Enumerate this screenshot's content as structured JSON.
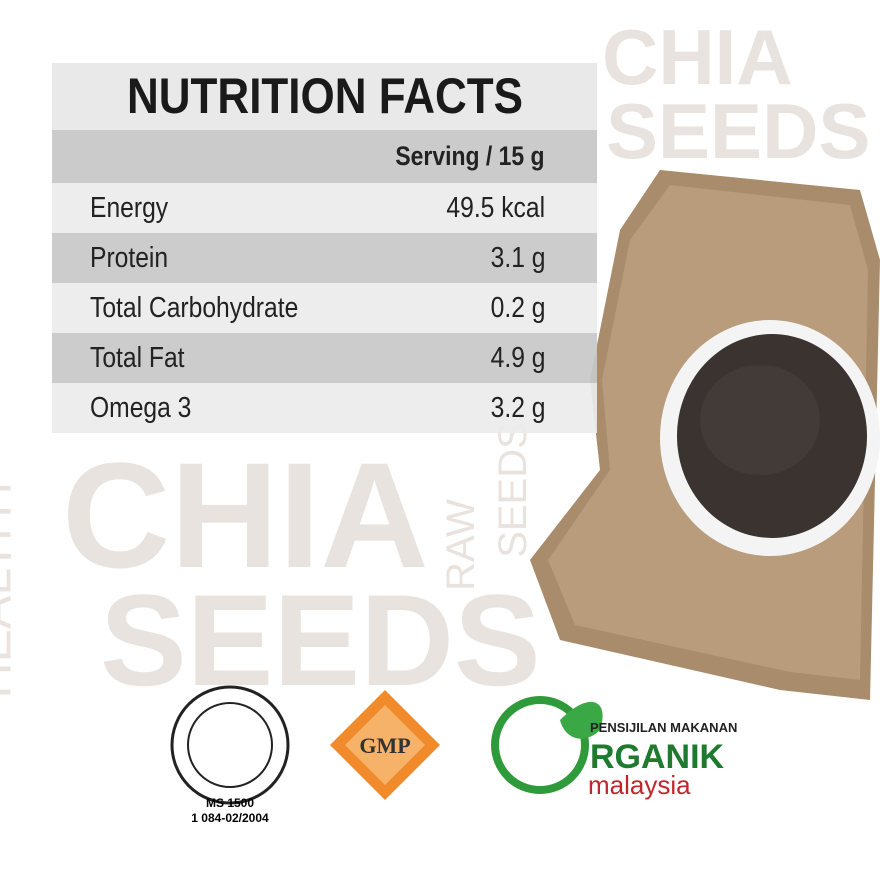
{
  "background_words": [
    "CHIA",
    "SEEDS",
    "CHIA",
    "SEEDS",
    "HEALTHY",
    "RAW",
    "SEEDS"
  ],
  "header": {
    "title": "NUTRITION FACTS",
    "serving": "Serving / 15 g"
  },
  "table": {
    "rows": [
      [
        "Energy",
        "49.5 kcal"
      ],
      [
        "Protein",
        "3.1 g"
      ],
      [
        "Total Carbohydrate",
        "0.2 g"
      ],
      [
        "Total Fat",
        "4.9 g"
      ],
      [
        "Omega 3",
        "3.2 g"
      ]
    ]
  },
  "logos": {
    "halal": {
      "line1": "MS 1500",
      "line2": "1 084-02/2004"
    },
    "gmp": "GMP",
    "organic": {
      "top": "PENSIJILAN MAKANAN",
      "main": "RGANIK",
      "sub": "malaysia"
    }
  }
}
